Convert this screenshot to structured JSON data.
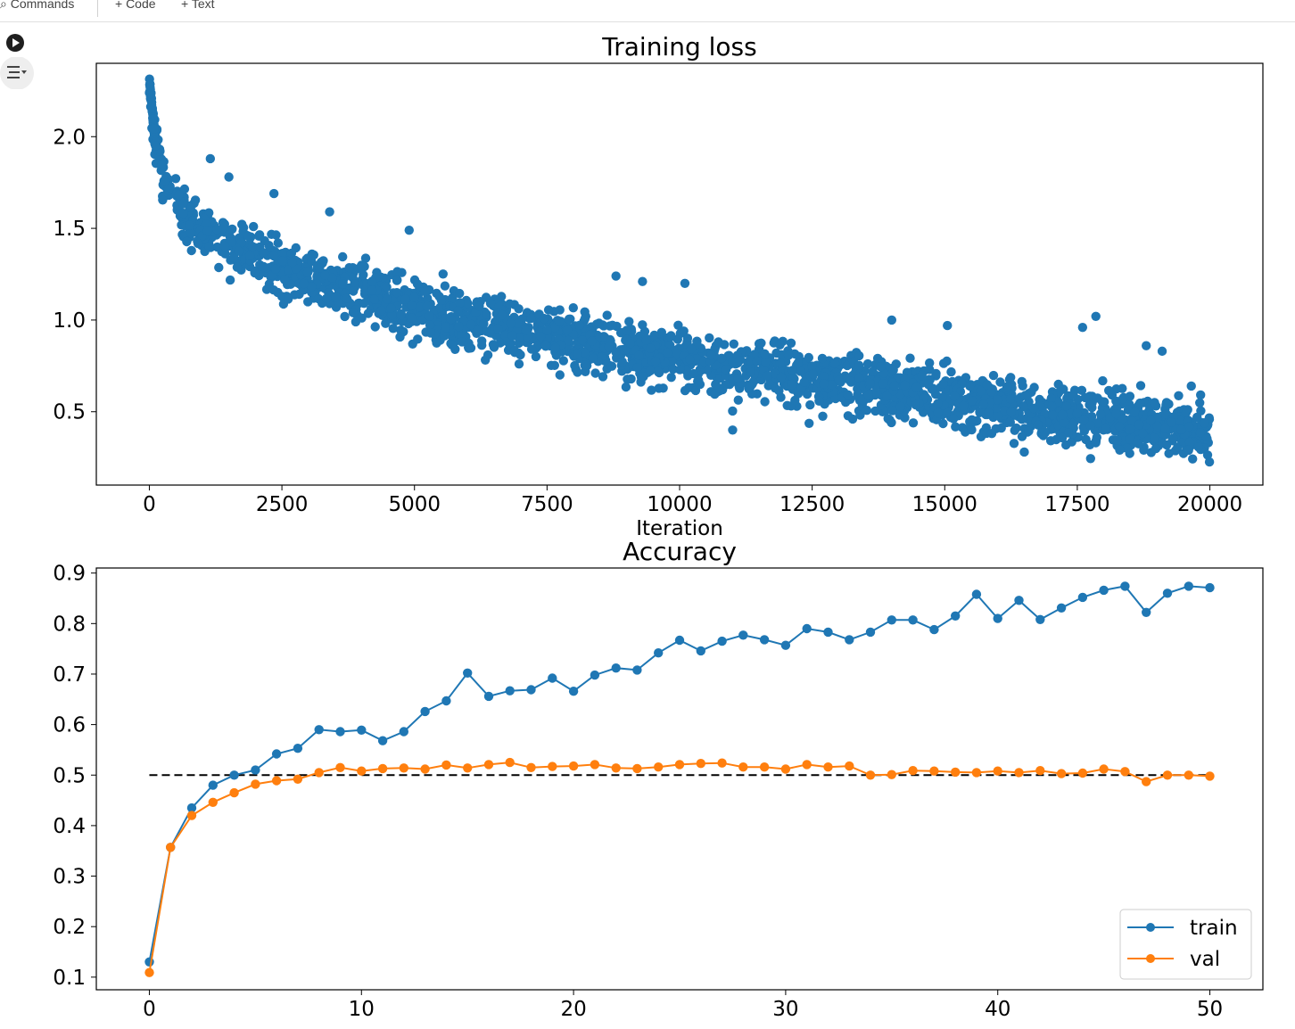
{
  "toolbar": {
    "commands_label": "Commands",
    "add_code_label": "+ Code",
    "add_text_label": "+ Text"
  },
  "cell": {
    "run_icon": "play-circle-icon",
    "output_icon": "output-toggle-icon"
  },
  "chart_data": [
    {
      "type": "scatter",
      "title": "Training loss",
      "xlabel": "Iteration",
      "ylabel": "",
      "xlim": [
        -1000,
        21000
      ],
      "ylim": [
        0.1,
        2.4
      ],
      "xticks": [
        "0",
        "2500",
        "5000",
        "7500",
        "10000",
        "12500",
        "15000",
        "17500",
        "20000"
      ],
      "yticks": [
        "0.5",
        "1.0",
        "1.5",
        "2.0"
      ],
      "color": "#1f77b4",
      "n_points": 20000,
      "trend_x": [
        0,
        100,
        300,
        600,
        1000,
        1500,
        2000,
        3000,
        4000,
        5000,
        6000,
        7500,
        9000,
        10000,
        11000,
        12500,
        14000,
        15000,
        16000,
        17500,
        19000,
        20000
      ],
      "trend_y": [
        2.25,
        2.0,
        1.75,
        1.6,
        1.5,
        1.42,
        1.36,
        1.24,
        1.15,
        1.07,
        1.0,
        0.91,
        0.84,
        0.79,
        0.74,
        0.68,
        0.62,
        0.58,
        0.54,
        0.48,
        0.43,
        0.4
      ],
      "spread": 0.14,
      "outliers": [
        [
          1150,
          1.88
        ],
        [
          1500,
          1.78
        ],
        [
          2350,
          1.69
        ],
        [
          3400,
          1.59
        ],
        [
          4900,
          1.49
        ],
        [
          8800,
          1.24
        ],
        [
          9300,
          1.21
        ],
        [
          10100,
          1.2
        ],
        [
          14000,
          1.0
        ],
        [
          15050,
          0.97
        ],
        [
          17850,
          1.02
        ],
        [
          17600,
          0.96
        ],
        [
          18800,
          0.86
        ],
        [
          19100,
          0.83
        ],
        [
          11000,
          0.4
        ],
        [
          16500,
          0.28
        ],
        [
          19650,
          0.64
        ]
      ]
    },
    {
      "type": "line",
      "title": "Accuracy",
      "xlabel": "",
      "ylabel": "",
      "xlim": [
        -2.5,
        52.5
      ],
      "ylim": [
        0.075,
        0.91
      ],
      "xticks": [
        "0",
        "10",
        "20",
        "30",
        "40",
        "50"
      ],
      "yticks": [
        "0.1",
        "0.2",
        "0.3",
        "0.4",
        "0.5",
        "0.6",
        "0.7",
        "0.8",
        "0.9"
      ],
      "legend_position": "lower-right",
      "reference_line": {
        "y": 0.5,
        "style": "dashed",
        "color": "#000000"
      },
      "x": [
        0,
        1,
        2,
        3,
        4,
        5,
        6,
        7,
        8,
        9,
        10,
        11,
        12,
        13,
        14,
        15,
        16,
        17,
        18,
        19,
        20,
        21,
        22,
        23,
        24,
        25,
        26,
        27,
        28,
        29,
        30,
        31,
        32,
        33,
        34,
        35,
        36,
        37,
        38,
        39,
        40,
        41,
        42,
        43,
        44,
        45,
        46,
        47,
        48,
        49,
        50
      ],
      "series": [
        {
          "name": "train",
          "color": "#1f77b4",
          "values": [
            0.13,
            0.357,
            0.435,
            0.48,
            0.5,
            0.51,
            0.542,
            0.553,
            0.59,
            0.586,
            0.589,
            0.568,
            0.586,
            0.626,
            0.647,
            0.702,
            0.656,
            0.667,
            0.669,
            0.692,
            0.666,
            0.698,
            0.712,
            0.708,
            0.742,
            0.767,
            0.746,
            0.765,
            0.777,
            0.768,
            0.757,
            0.79,
            0.783,
            0.768,
            0.783,
            0.807,
            0.807,
            0.788,
            0.815,
            0.858,
            0.81,
            0.846,
            0.808,
            0.831,
            0.852,
            0.866,
            0.874,
            0.822,
            0.86,
            0.874,
            0.871
          ]
        },
        {
          "name": "val",
          "color": "#ff7f0e",
          "values": [
            0.109,
            0.357,
            0.42,
            0.446,
            0.465,
            0.482,
            0.489,
            0.492,
            0.505,
            0.515,
            0.508,
            0.513,
            0.514,
            0.512,
            0.52,
            0.514,
            0.521,
            0.525,
            0.515,
            0.517,
            0.518,
            0.521,
            0.514,
            0.513,
            0.516,
            0.521,
            0.523,
            0.524,
            0.516,
            0.516,
            0.512,
            0.521,
            0.516,
            0.518,
            0.5,
            0.501,
            0.509,
            0.508,
            0.506,
            0.505,
            0.508,
            0.505,
            0.509,
            0.503,
            0.504,
            0.512,
            0.507,
            0.487,
            0.5,
            0.5,
            0.498
          ]
        }
      ]
    }
  ]
}
